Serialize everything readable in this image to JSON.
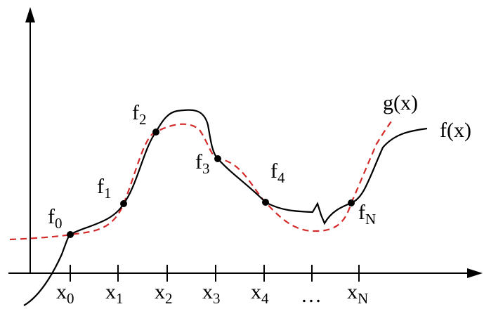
{
  "labels": {
    "f0": {
      "base": "f",
      "sub": "0"
    },
    "f1": {
      "base": "f",
      "sub": "1"
    },
    "f2": {
      "base": "f",
      "sub": "2"
    },
    "f3": {
      "base": "f",
      "sub": "3"
    },
    "f4": {
      "base": "f",
      "sub": "4"
    },
    "fN": {
      "base": "f",
      "sub": "N"
    },
    "fx": "f(x)",
    "gx": "g(x)"
  },
  "x_ticks": [
    {
      "base": "x",
      "sub": "0"
    },
    {
      "base": "x",
      "sub": "1"
    },
    {
      "base": "x",
      "sub": "2"
    },
    {
      "base": "x",
      "sub": "3"
    },
    {
      "base": "x",
      "sub": "4"
    },
    {
      "base": "…",
      "sub": ""
    },
    {
      "base": "x",
      "sub": "N"
    }
  ],
  "colors": {
    "f_curve": "#000000",
    "g_curve": "#d42a2a",
    "axes": "#000000",
    "points": "#000000"
  }
}
